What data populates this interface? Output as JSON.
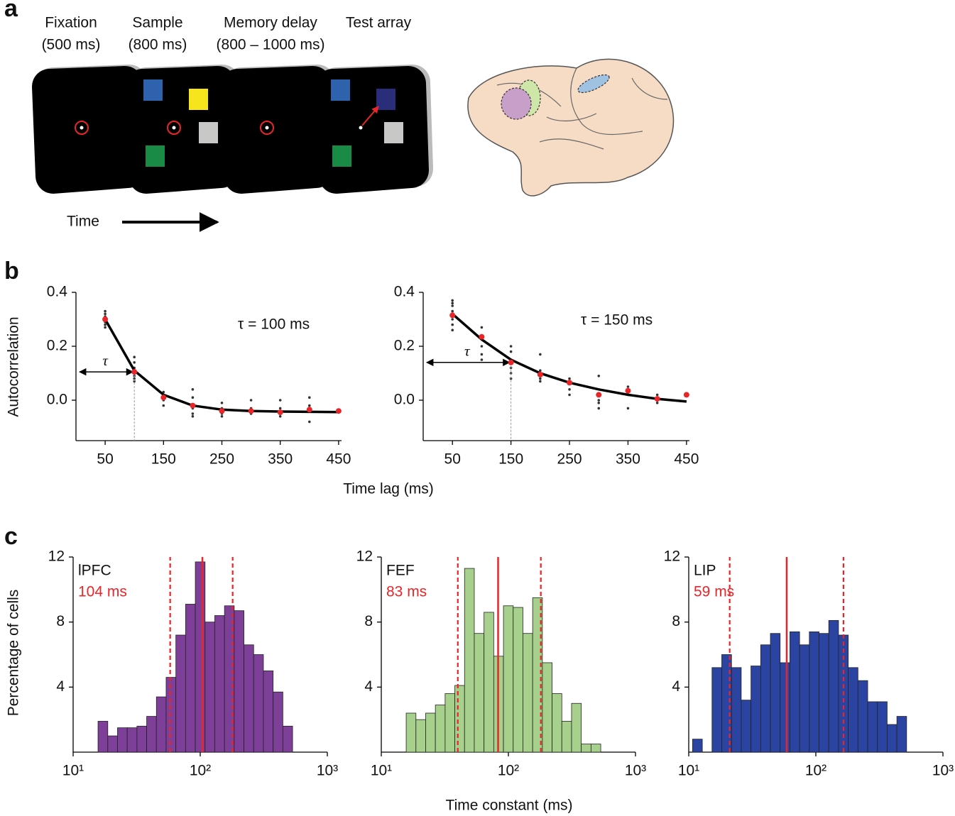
{
  "panel_labels": [
    "a",
    "b",
    "c"
  ],
  "panel_a": {
    "epochs": [
      [
        "Fixation",
        "(500 ms)"
      ],
      [
        "Sample",
        "(800 ms)"
      ],
      [
        "Memory delay",
        "(800 – 1000 ms)"
      ],
      [
        "Test array"
      ]
    ],
    "time_label": "Time"
  },
  "panel_b": {
    "ylabel": "Autocorrelation",
    "xlabel": "Time lag (ms)"
  },
  "panel_c": {
    "ylabel": "Percentage of cells",
    "xlabel": "Time constant (ms)"
  },
  "chart_data": [
    {
      "type": "line",
      "annotation": "τ = 100 ms",
      "tau_label": "τ",
      "tau": 100,
      "color": "#e8262a",
      "line_color": "#000000",
      "x": [
        50,
        100,
        150,
        200,
        250,
        300,
        350,
        400,
        450
      ],
      "values": [
        0.3,
        0.105,
        0.01,
        -0.02,
        -0.04,
        -0.04,
        -0.045,
        -0.035,
        -0.04
      ],
      "fit": [
        0.3,
        0.11,
        0.02,
        -0.02,
        -0.035,
        -0.04,
        -0.042,
        -0.043,
        -0.044
      ],
      "samples": {
        "x": [
          50,
          50,
          50,
          50,
          50,
          50,
          100,
          100,
          100,
          100,
          100,
          100,
          150,
          150,
          150,
          150,
          150,
          200,
          200,
          200,
          200,
          200,
          250,
          250,
          250,
          250,
          300,
          300,
          300,
          300,
          350,
          350,
          350,
          400,
          400,
          400,
          400
        ],
        "values": [
          0.33,
          0.32,
          0.31,
          0.29,
          0.28,
          0.27,
          0.16,
          0.14,
          0.12,
          0.09,
          0.08,
          0.07,
          0.03,
          0.02,
          0.01,
          0.0,
          -0.02,
          0.04,
          0.01,
          -0.03,
          -0.05,
          -0.06,
          -0.01,
          -0.03,
          -0.05,
          -0.06,
          0.0,
          -0.03,
          -0.04,
          -0.05,
          0.0,
          -0.03,
          -0.06,
          0.01,
          -0.02,
          -0.04,
          -0.08
        ]
      },
      "xlim": [
        0,
        455
      ],
      "ylim": [
        -0.15,
        0.4
      ],
      "xticks": [
        50,
        150,
        250,
        350,
        450
      ],
      "yticks": [
        {
          "value": 0,
          "label": "0.0"
        },
        0.2,
        0.4
      ]
    },
    {
      "type": "line",
      "annotation": "τ = 150 ms",
      "tau_label": "τ",
      "tau": 150,
      "color": "#e8262a",
      "line_color": "#000000",
      "x": [
        50,
        100,
        150,
        200,
        250,
        300,
        350,
        400,
        450
      ],
      "values": [
        0.315,
        0.235,
        0.14,
        0.095,
        0.065,
        0.02,
        0.035,
        0.005,
        0.02
      ],
      "fit": [
        0.32,
        0.225,
        0.15,
        0.1,
        0.065,
        0.04,
        0.02,
        0.005,
        -0.005
      ],
      "samples": {
        "x": [
          50,
          50,
          50,
          50,
          50,
          50,
          50,
          100,
          100,
          100,
          100,
          100,
          150,
          150,
          150,
          150,
          150,
          150,
          200,
          200,
          200,
          200,
          200,
          250,
          250,
          250,
          250,
          300,
          300,
          300,
          300,
          350,
          350,
          350,
          400,
          400,
          400
        ],
        "values": [
          0.37,
          0.36,
          0.35,
          0.33,
          0.3,
          0.28,
          0.26,
          0.27,
          0.24,
          0.2,
          0.17,
          0.15,
          0.2,
          0.18,
          0.15,
          0.12,
          0.1,
          0.08,
          0.17,
          0.11,
          0.09,
          0.08,
          0.07,
          0.08,
          0.06,
          0.04,
          0.02,
          0.09,
          0.0,
          -0.01,
          -0.03,
          0.05,
          0.02,
          -0.03,
          0.02,
          0.0,
          -0.01
        ]
      },
      "xlim": [
        0,
        455
      ],
      "ylim": [
        -0.15,
        0.4
      ],
      "xticks": [
        50,
        150,
        250,
        350,
        450
      ],
      "yticks": [
        {
          "value": 0,
          "label": "0.0"
        },
        0.2,
        0.4
      ]
    },
    {
      "type": "histogram",
      "label": "lPFC",
      "color": "#7d3f98",
      "line_color": "#e8262a",
      "xscale": "log",
      "bins": [
        15.7,
        18.73,
        22.34,
        26.64,
        31.78,
        37.9,
        45.2,
        53.91,
        64.3,
        76.69,
        91.47,
        109.1,
        130.1,
        155.2,
        185.1,
        220.8,
        263.3,
        314.1,
        374.6,
        446.8,
        532.9
      ],
      "values": [
        1.9,
        1.0,
        1.5,
        1.5,
        1.6,
        2.2,
        3.4,
        4.6,
        7.2,
        9.1,
        11.7,
        8.0,
        8.4,
        9.0,
        8.7,
        6.6,
        6.0,
        5.0,
        3.7,
        1.6
      ],
      "median": 104,
      "median_label": "104 ms",
      "quartiles": [
        58,
        180
      ],
      "xlim": [
        10,
        1000
      ],
      "ylim": [
        0,
        12
      ],
      "xticks": [
        {
          "value": 10,
          "label": "10¹"
        },
        {
          "value": 100,
          "label": "10²"
        },
        {
          "value": 1000,
          "label": "10³"
        }
      ],
      "yticks": [
        4,
        8,
        12
      ]
    },
    {
      "type": "histogram",
      "label": "FEF",
      "color": "#a8d08d",
      "line_color": "#e8262a",
      "xscale": "log",
      "bins": [
        15.7,
        18.73,
        22.34,
        26.64,
        31.78,
        37.9,
        45.2,
        53.91,
        64.3,
        76.69,
        91.47,
        109.1,
        130.1,
        155.2,
        185.1,
        220.8,
        263.3,
        314.1,
        374.6,
        446.8,
        532.9
      ],
      "values": [
        2.4,
        2.0,
        2.4,
        2.9,
        3.6,
        4.1,
        11.3,
        7.3,
        8.6,
        5.9,
        9.0,
        8.9,
        7.3,
        9.5,
        5.5,
        3.6,
        1.9,
        3.0,
        0.5,
        0.5
      ],
      "median": 83,
      "median_label": "83 ms",
      "quartiles": [
        40,
        180
      ],
      "xlim": [
        10,
        1000
      ],
      "ylim": [
        0,
        12
      ],
      "xticks": [
        {
          "value": 10,
          "label": "10¹"
        },
        {
          "value": 100,
          "label": "10²"
        },
        {
          "value": 1000,
          "label": "10³"
        }
      ],
      "yticks": [
        4,
        8,
        12
      ]
    },
    {
      "type": "histogram",
      "label": "LIP",
      "color": "#2b44a1",
      "line_color": "#e8262a",
      "xscale": "log",
      "bins": [
        10.72,
        12.79,
        15.25,
        18.19,
        21.7,
        25.88,
        30.87,
        36.82,
        43.92,
        52.38,
        62.48,
        74.52,
        88.88,
        106.0,
        126.4,
        150.8,
        179.9,
        214.5,
        255.9,
        305.2,
        364.0,
        434.2,
        517.8
      ],
      "values": [
        0.8,
        0,
        5.2,
        6.0,
        5.2,
        3.2,
        5.3,
        6.6,
        7.3,
        5.5,
        7.4,
        6.6,
        7.4,
        7.3,
        8.1,
        7.2,
        5.2,
        4.4,
        3.1,
        3.1,
        1.7,
        2.2
      ],
      "median": 59,
      "median_label": "59 ms",
      "quartiles": [
        21,
        165
      ],
      "xlim": [
        10,
        1000
      ],
      "ylim": [
        0,
        12
      ],
      "xticks": [
        {
          "value": 10,
          "label": "10¹"
        },
        {
          "value": 100,
          "label": "10²"
        },
        {
          "value": 1000,
          "label": "10³"
        }
      ],
      "yticks": [
        4,
        8,
        12
      ]
    }
  ]
}
